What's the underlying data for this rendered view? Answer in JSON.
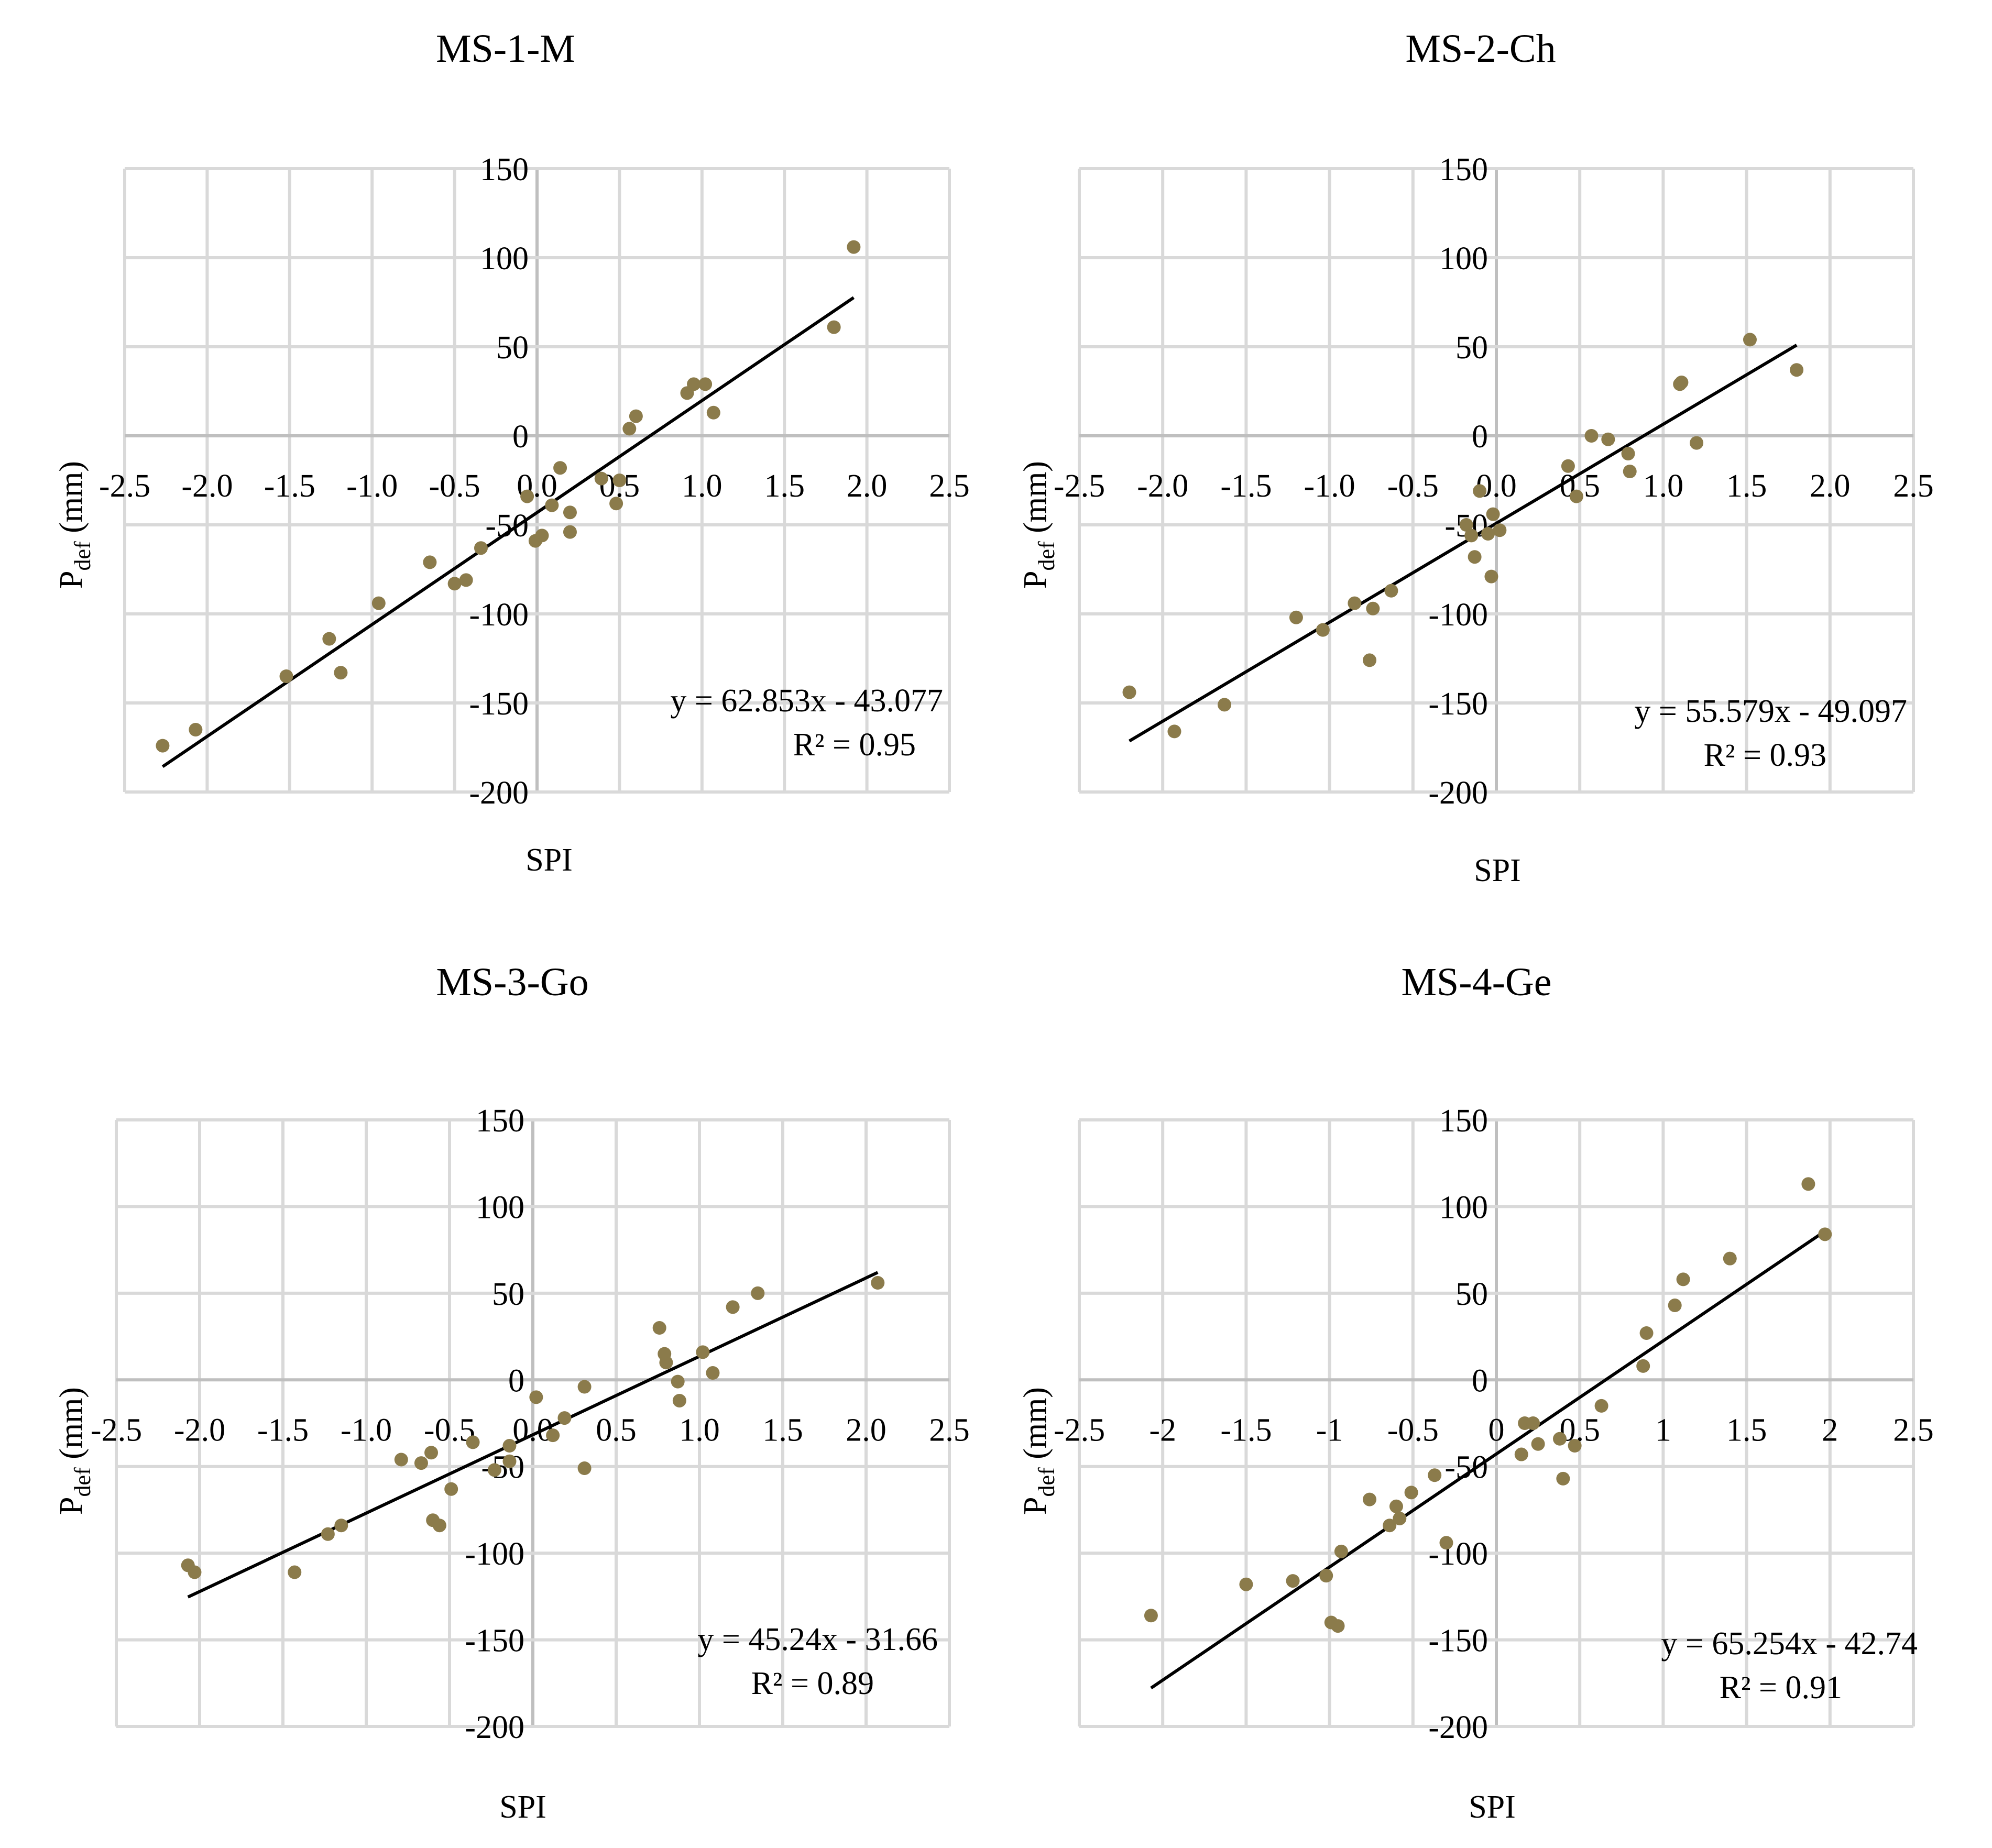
{
  "figure": {
    "marker_color": "#8B7B4B",
    "trend_color": "#000000",
    "grid_color": "#D9D9D9"
  },
  "chart_data": [
    {
      "type": "scatter",
      "title": "MS-1-M",
      "xlabel": "SPI",
      "ylabel_main": "P",
      "ylabel_sub": "def",
      "ylabel_unit": " (mm)",
      "xlim": [
        -2.5,
        2.5
      ],
      "ylim": [
        -200,
        150
      ],
      "xticks": [
        "-2.5",
        "-2.0",
        "-1.5",
        "-1.0",
        "-0.5",
        "0.0",
        "0.5",
        "1.0",
        "1.5",
        "2.0",
        "2.5"
      ],
      "yticks": [
        "-200",
        "-150",
        "-100",
        "-50",
        "0",
        "50",
        "100",
        "150"
      ],
      "trendline": {
        "slope": 62.853,
        "intercept": -43.077,
        "x_range": [
          -2.27,
          1.92
        ]
      },
      "equation": "y = 62.853x - 43.077",
      "r2": "R² = 0.95",
      "points": [
        [
          -2.27,
          -174
        ],
        [
          -2.07,
          -165
        ],
        [
          -1.52,
          -135
        ],
        [
          -1.26,
          -114
        ],
        [
          -1.19,
          -133
        ],
        [
          -0.96,
          -94
        ],
        [
          -0.65,
          -71
        ],
        [
          -0.5,
          -83
        ],
        [
          -0.43,
          -81
        ],
        [
          -0.34,
          -63
        ],
        [
          -0.06,
          -34
        ],
        [
          -0.01,
          -59
        ],
        [
          0.03,
          -56
        ],
        [
          0.09,
          -39
        ],
        [
          0.14,
          -18
        ],
        [
          0.2,
          -43
        ],
        [
          0.2,
          -54
        ],
        [
          0.39,
          -24
        ],
        [
          0.48,
          -38
        ],
        [
          0.5,
          -25
        ],
        [
          0.56,
          4
        ],
        [
          0.6,
          11
        ],
        [
          0.91,
          24
        ],
        [
          0.95,
          29
        ],
        [
          1.02,
          29
        ],
        [
          1.07,
          13
        ],
        [
          1.8,
          61
        ],
        [
          1.92,
          106
        ]
      ]
    },
    {
      "type": "scatter",
      "title": "MS-2-Ch",
      "xlabel": "SPI",
      "ylabel_main": "P",
      "ylabel_sub": "def",
      "ylabel_unit": " (mm)",
      "xlim": [
        -2.5,
        2.5
      ],
      "ylim": [
        -200,
        150
      ],
      "xticks": [
        "-2.5",
        "-2.0",
        "-1.5",
        "-1.0",
        "-0.5",
        "0.0",
        "0.5",
        "1.0",
        "1.5",
        "2.0",
        "2.5"
      ],
      "yticks": [
        "-200",
        "-150",
        "-100",
        "-50",
        "0",
        "50",
        "100",
        "150"
      ],
      "trendline": {
        "slope": 55.579,
        "intercept": -49.097,
        "x_range": [
          -2.2,
          1.8
        ]
      },
      "equation": "y = 55.579x - 49.097",
      "r2": "R² = 0.93",
      "points": [
        [
          -2.2,
          -144
        ],
        [
          -1.93,
          -166
        ],
        [
          -1.63,
          -151
        ],
        [
          -1.2,
          -102
        ],
        [
          -1.04,
          -109
        ],
        [
          -0.85,
          -94
        ],
        [
          -0.76,
          -126
        ],
        [
          -0.74,
          -97
        ],
        [
          -0.63,
          -87
        ],
        [
          -0.18,
          -50
        ],
        [
          -0.15,
          -56
        ],
        [
          -0.13,
          -68
        ],
        [
          -0.1,
          -31
        ],
        [
          -0.05,
          -55
        ],
        [
          -0.03,
          -79
        ],
        [
          -0.02,
          -44
        ],
        [
          0.02,
          -53
        ],
        [
          0.43,
          -17
        ],
        [
          0.48,
          -34
        ],
        [
          0.57,
          0
        ],
        [
          0.67,
          -2
        ],
        [
          0.79,
          -10
        ],
        [
          0.8,
          -20
        ],
        [
          1.1,
          29
        ],
        [
          1.11,
          30
        ],
        [
          1.2,
          -4
        ],
        [
          1.52,
          54
        ],
        [
          1.8,
          37
        ]
      ]
    },
    {
      "type": "scatter",
      "title": "MS-3-Go",
      "xlabel": "SPI",
      "ylabel_main": "P",
      "ylabel_sub": "def",
      "ylabel_unit": " (mm)",
      "xlim": [
        -2.5,
        2.5
      ],
      "ylim": [
        -200,
        150
      ],
      "xticks": [
        "-2.5",
        "-2.0",
        "-1.5",
        "-1.0",
        "-0.5",
        "0.0",
        "0.5",
        "1.0",
        "1.5",
        "2.0",
        "2.5"
      ],
      "yticks": [
        "-200",
        "-150",
        "-100",
        "-50",
        "0",
        "50",
        "100",
        "150"
      ],
      "trendline": {
        "slope": 45.24,
        "intercept": -31.66,
        "x_range": [
          -2.07,
          2.07
        ]
      },
      "equation": "y = 45.24x - 31.66",
      "r2": "R² = 0.89",
      "points": [
        [
          -2.07,
          -107
        ],
        [
          -2.03,
          -111
        ],
        [
          -1.43,
          -111
        ],
        [
          -1.23,
          -89
        ],
        [
          -1.15,
          -84
        ],
        [
          -0.79,
          -46
        ],
        [
          -0.67,
          -48
        ],
        [
          -0.61,
          -42
        ],
        [
          -0.6,
          -81
        ],
        [
          -0.56,
          -84
        ],
        [
          -0.49,
          -63
        ],
        [
          -0.36,
          -36
        ],
        [
          -0.23,
          -52
        ],
        [
          -0.14,
          -38
        ],
        [
          -0.14,
          -47
        ],
        [
          0.02,
          -10
        ],
        [
          0.12,
          -32
        ],
        [
          0.19,
          -22
        ],
        [
          0.31,
          -4
        ],
        [
          0.31,
          -51
        ],
        [
          0.76,
          30
        ],
        [
          0.79,
          15
        ],
        [
          0.8,
          10
        ],
        [
          0.87,
          -1
        ],
        [
          0.88,
          -12
        ],
        [
          1.02,
          16
        ],
        [
          1.08,
          4
        ],
        [
          1.2,
          42
        ],
        [
          1.35,
          50
        ],
        [
          2.07,
          56
        ]
      ]
    },
    {
      "type": "scatter",
      "title": "MS-4-Ge",
      "xlabel": "SPI",
      "ylabel_main": "P",
      "ylabel_sub": "def",
      "ylabel_unit": " (mm)",
      "xlim": [
        -2.5,
        2.5
      ],
      "ylim": [
        -200,
        150
      ],
      "xticks": [
        "-2.5",
        "-2",
        "-1.5",
        "-1",
        "-0.5",
        "0",
        "0.5",
        "1",
        "1.5",
        "2",
        "2.5"
      ],
      "yticks": [
        "-200",
        "-150",
        "-100",
        "-50",
        "0",
        "50",
        "100",
        "150"
      ],
      "trendline": {
        "slope": 65.254,
        "intercept": -42.74,
        "x_range": [
          -2.07,
          1.97
        ]
      },
      "equation": "y = 65.254x - 42.74",
      "r2": "R² = 0.91",
      "points": [
        [
          -2.07,
          -136
        ],
        [
          -1.5,
          -118
        ],
        [
          -1.22,
          -116
        ],
        [
          -1.02,
          -113
        ],
        [
          -0.99,
          -140
        ],
        [
          -0.95,
          -142
        ],
        [
          -0.93,
          -99
        ],
        [
          -0.76,
          -69
        ],
        [
          -0.64,
          -84
        ],
        [
          -0.6,
          -73
        ],
        [
          -0.58,
          -80
        ],
        [
          -0.51,
          -65
        ],
        [
          -0.37,
          -55
        ],
        [
          -0.3,
          -94
        ],
        [
          0.15,
          -43
        ],
        [
          0.17,
          -25
        ],
        [
          0.22,
          -25
        ],
        [
          0.25,
          -37
        ],
        [
          0.38,
          -34
        ],
        [
          0.4,
          -57
        ],
        [
          0.47,
          -38
        ],
        [
          0.63,
          -15
        ],
        [
          0.88,
          8
        ],
        [
          0.9,
          27
        ],
        [
          1.07,
          43
        ],
        [
          1.12,
          58
        ],
        [
          1.4,
          70
        ],
        [
          1.87,
          113
        ],
        [
          1.97,
          84
        ]
      ]
    }
  ]
}
